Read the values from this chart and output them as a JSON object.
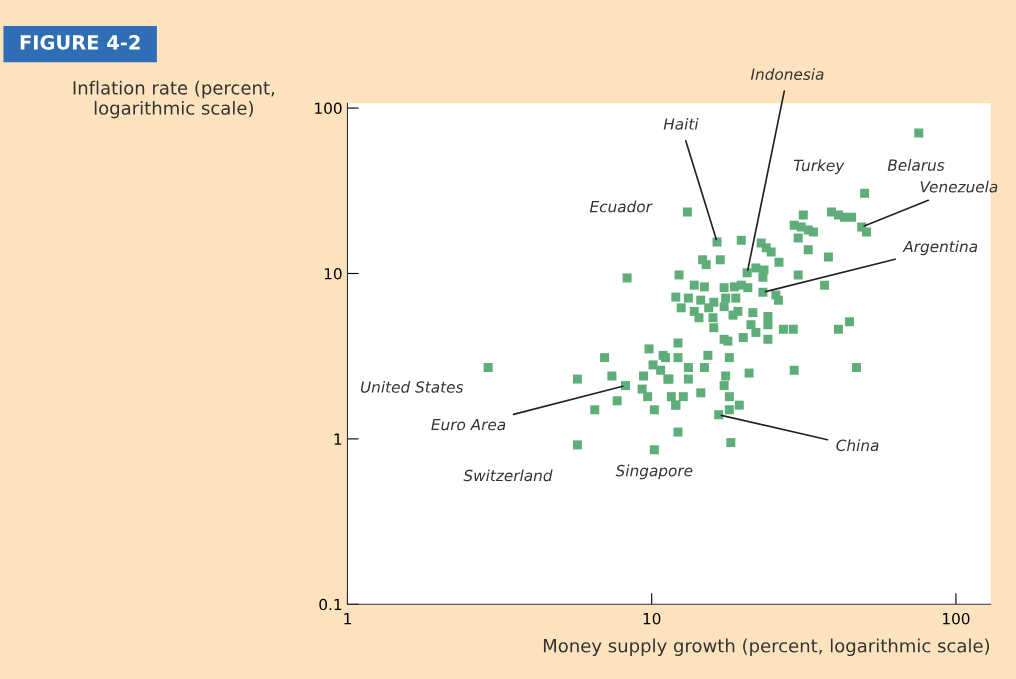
{
  "chart_data": {
    "type": "scatter",
    "title": "FIGURE 4-2",
    "xlabel": "Money supply growth (percent, logarithmic scale)",
    "ylabel": "Inflation rate (percent,\nlogarithmic scale)",
    "log": "xy",
    "marker": "square",
    "grid": false,
    "xlim": [
      1,
      130
    ],
    "ylim": [
      0.1,
      107
    ],
    "xticks": [
      1,
      10,
      100
    ],
    "yticks": [
      0.1,
      1,
      10,
      100
    ],
    "series": [
      {
        "color": "#5fae7a",
        "x": [
          75.5,
          50.1,
          49.0,
          50.8,
          31.5,
          29.4,
          31.0,
          32.7,
          34.0,
          30.3,
          32.7,
          38.1,
          39.0,
          41.1,
          43.0,
          45.4,
          13.1,
          16.4,
          19.7,
          22.9,
          23.8,
          24.7,
          26.2,
          16.8,
          14.7,
          15.1,
          12.3,
          8.3,
          20.6,
          22.0,
          23.4,
          23.2,
          30.3,
          37.0,
          23.2,
          25.6,
          26.1,
          13.8,
          14.9,
          17.3,
          18.7,
          19.7,
          20.7,
          12.0,
          13.2,
          14.5,
          16.0,
          17.5,
          18.9,
          12.5,
          13.8,
          15.4,
          17.3,
          14.3,
          15.9,
          18.5,
          19.2,
          21.5,
          24.1,
          21.2,
          22.0,
          24.1,
          27.1,
          29.2,
          41.1,
          44.7,
          16.0,
          17.3,
          20.0,
          24.1,
          12.2,
          17.8,
          11.1,
          12.2,
          15.3,
          18.0,
          13.2,
          14.9,
          20.9,
          29.4,
          47.1,
          11.3,
          13.2,
          17.5,
          17.3,
          11.6,
          12.7,
          14.5,
          18.0,
          12.0,
          19.4,
          16.6,
          18.0,
          12.2,
          18.2,
          2.9,
          7.0,
          5.7,
          7.4,
          9.4,
          9.8,
          10.9,
          10.1,
          10.7,
          11.4,
          8.2,
          9.3,
          9.7,
          6.5,
          7.7,
          10.2,
          12.0,
          5.7,
          10.2
        ],
        "values": [
          70.6,
          30.6,
          19.1,
          17.8,
          22.6,
          19.6,
          19.1,
          18.3,
          17.8,
          16.4,
          13.9,
          12.6,
          23.5,
          22.6,
          21.9,
          21.9,
          23.5,
          15.5,
          15.9,
          15.3,
          14.3,
          13.5,
          11.7,
          12.1,
          12.1,
          11.3,
          9.8,
          9.4,
          10.1,
          10.8,
          10.5,
          9.5,
          9.8,
          8.5,
          7.7,
          7.4,
          6.9,
          8.5,
          8.3,
          8.2,
          8.3,
          8.5,
          8.2,
          7.2,
          7.1,
          6.9,
          6.7,
          7.1,
          7.1,
          6.2,
          5.9,
          6.2,
          6.3,
          5.4,
          5.4,
          5.6,
          5.9,
          5.8,
          5.5,
          4.9,
          4.4,
          4.9,
          4.6,
          4.6,
          4.6,
          5.1,
          4.7,
          4.0,
          4.1,
          4.0,
          3.8,
          3.9,
          3.1,
          3.1,
          3.2,
          3.1,
          2.7,
          2.7,
          2.5,
          2.6,
          2.7,
          2.3,
          2.3,
          2.4,
          2.1,
          1.8,
          1.8,
          1.9,
          1.8,
          1.6,
          1.6,
          1.4,
          1.5,
          1.1,
          0.95,
          2.7,
          3.1,
          2.3,
          2.4,
          2.4,
          3.5,
          3.2,
          2.8,
          2.6,
          2.3,
          2.1,
          2.0,
          1.8,
          1.5,
          1.7,
          1.5,
          1.6,
          0.92,
          0.86
        ]
      }
    ],
    "annotations": [
      {
        "text": "Indonesia",
        "x": 20.6,
        "y": 10.1
      },
      {
        "text": "Haiti",
        "x": 16.4,
        "y": 15.5
      },
      {
        "text": "Turkey",
        "x": 50.1,
        "y": 30.6
      },
      {
        "text": "Belarus",
        "x": 75.5,
        "y": 70.6
      },
      {
        "text": "Ecuador",
        "x": 13.1,
        "y": 23.5
      },
      {
        "text": "Venezuela",
        "x": 49.0,
        "y": 19.1
      },
      {
        "text": "Argentina",
        "x": 23.2,
        "y": 7.7
      },
      {
        "text": "United States",
        "x": 2.9,
        "y": 2.7
      },
      {
        "text": "Euro Area",
        "x": 8.2,
        "y": 2.1
      },
      {
        "text": "China",
        "x": 16.6,
        "y": 1.4
      },
      {
        "text": "Switzerland",
        "x": 5.7,
        "y": 0.92
      },
      {
        "text": "Singapore",
        "x": 10.2,
        "y": 0.86
      }
    ]
  }
}
